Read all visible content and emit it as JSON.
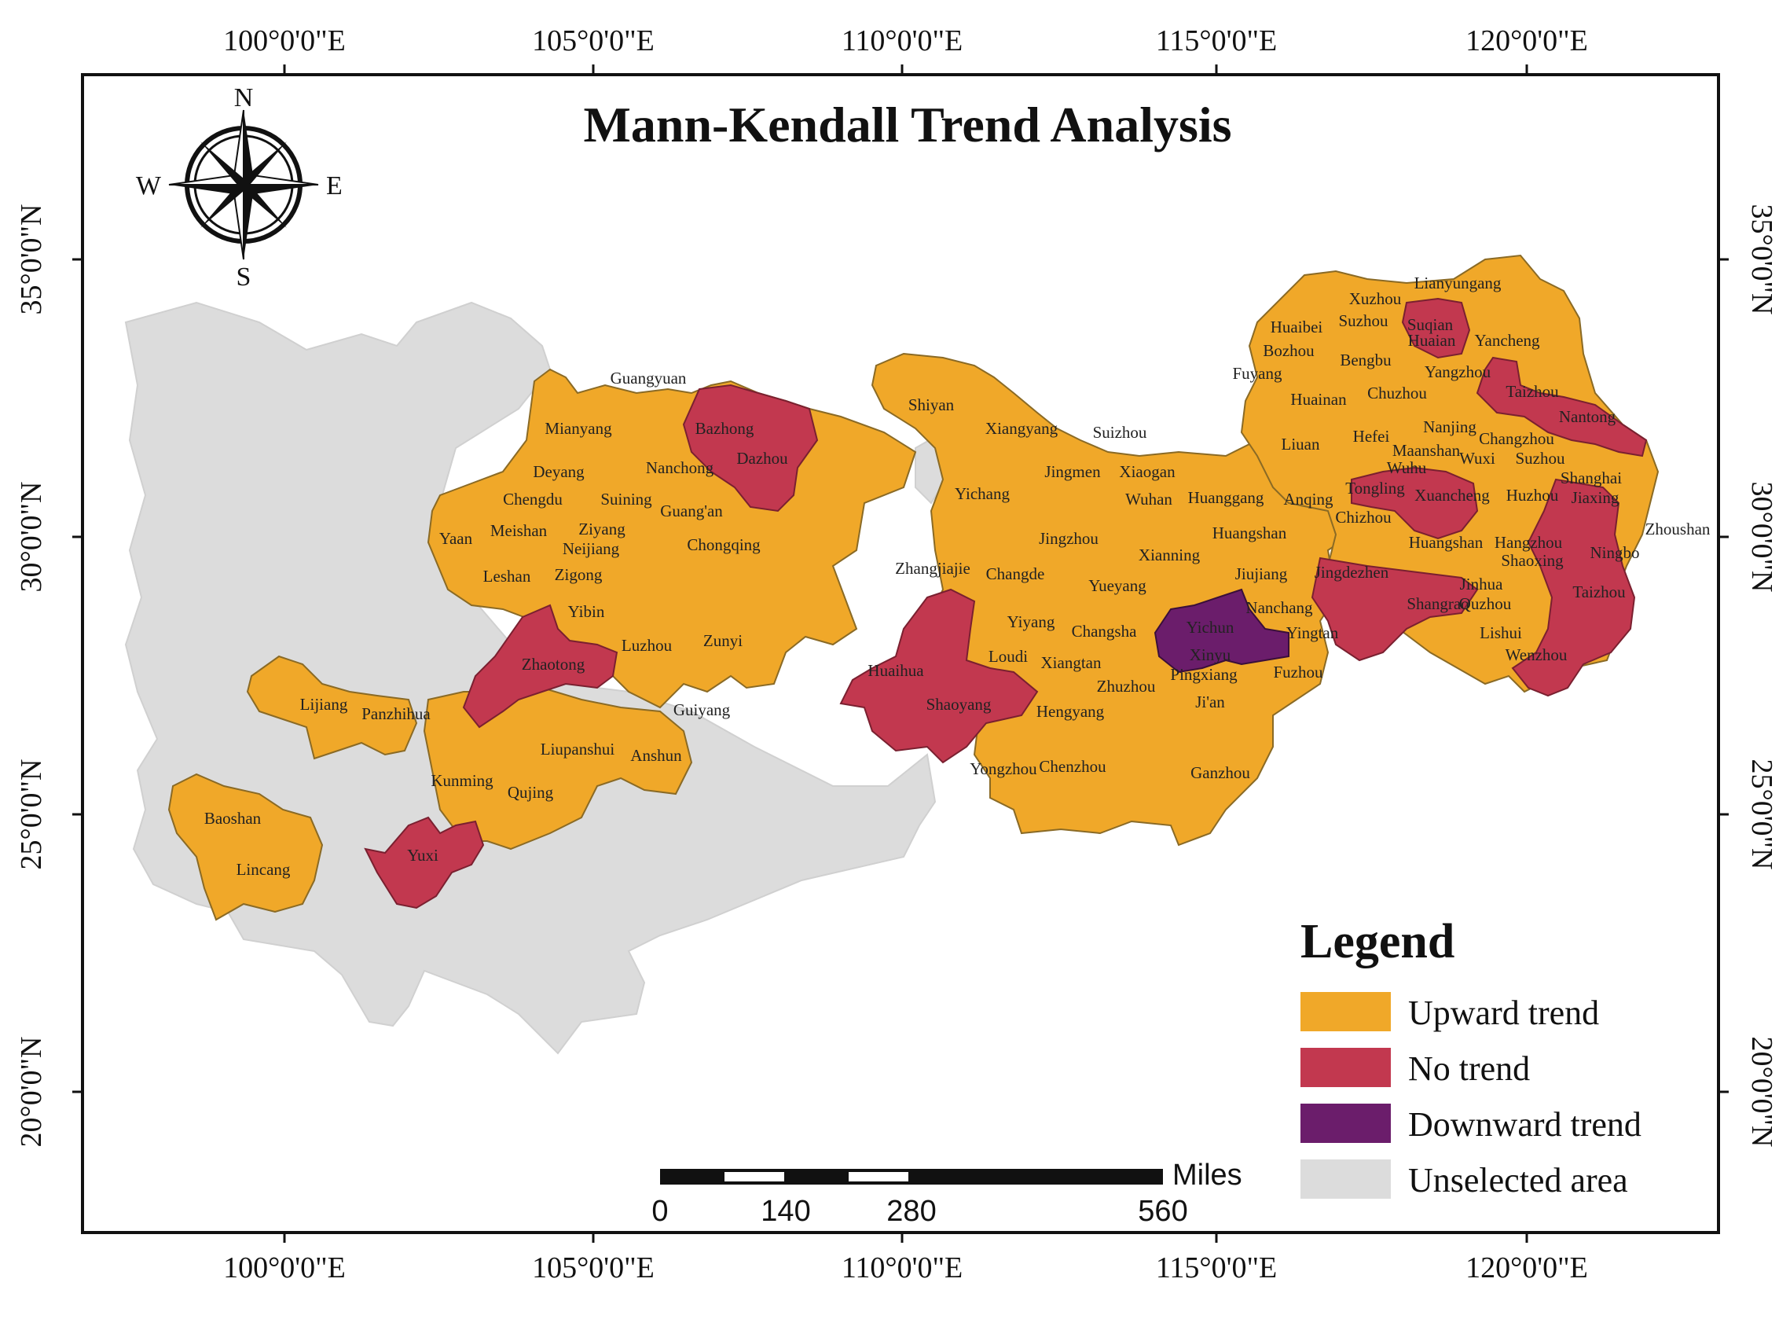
{
  "title": "Mann-Kendall Trend Analysis",
  "graticule": {
    "longitudes": [
      "100°0'0\"E",
      "105°0'0\"E",
      "110°0'0\"E",
      "115°0'0\"E",
      "120°0'0\"E"
    ],
    "latitudes": [
      "35°0'0\"N",
      "30°0'0\"N",
      "25°0'0\"N",
      "20°0'0\"N"
    ]
  },
  "compass": {
    "n": "N",
    "s": "S",
    "e": "E",
    "w": "W"
  },
  "legend": {
    "title": "Legend",
    "items": [
      {
        "label": "Upward trend",
        "color": "#f0a829"
      },
      {
        "label": "No trend",
        "color": "#c2384f"
      },
      {
        "label": "Downward trend",
        "color": "#6b1d6b"
      },
      {
        "label": "Unselected area",
        "color": "#dcdcdc"
      }
    ]
  },
  "scale_bar": {
    "unit": "Miles",
    "ticks": [
      "0",
      "140",
      "280",
      "560"
    ]
  },
  "cities": [
    {
      "name": "Lianyungang",
      "trend": "Upward trend"
    },
    {
      "name": "Xuzhou",
      "trend": "Upward trend"
    },
    {
      "name": "Suqian",
      "trend": "No trend"
    },
    {
      "name": "Huaibei",
      "trend": "Upward trend"
    },
    {
      "name": "Suzhou",
      "trend": "Upward trend"
    },
    {
      "name": "Huaian",
      "trend": "No trend"
    },
    {
      "name": "Yancheng",
      "trend": "Upward trend"
    },
    {
      "name": "Bozhou",
      "trend": "Upward trend"
    },
    {
      "name": "Bengbu",
      "trend": "Upward trend"
    },
    {
      "name": "Fuyang",
      "trend": "Upward trend"
    },
    {
      "name": "Yangzhou",
      "trend": "Upward trend"
    },
    {
      "name": "Huainan",
      "trend": "Upward trend"
    },
    {
      "name": "Chuzhou",
      "trend": "Upward trend"
    },
    {
      "name": "Taizhou",
      "trend": "No trend"
    },
    {
      "name": "Nantong",
      "trend": "No trend"
    },
    {
      "name": "Liuan",
      "trend": "Upward trend"
    },
    {
      "name": "Hefei",
      "trend": "Upward trend"
    },
    {
      "name": "Nanjing",
      "trend": "Upward trend"
    },
    {
      "name": "Changzhou",
      "trend": "Upward trend"
    },
    {
      "name": "Maanshan",
      "trend": "Upward trend"
    },
    {
      "name": "Wuxi",
      "trend": "Upward trend"
    },
    {
      "name": "Suzhou",
      "trend": "Upward trend"
    },
    {
      "name": "Wuhu",
      "trend": "Upward trend"
    },
    {
      "name": "Shanghai",
      "trend": "Upward trend"
    },
    {
      "name": "Tongling",
      "trend": "No trend"
    },
    {
      "name": "Xuancheng",
      "trend": "No trend"
    },
    {
      "name": "Huzhou",
      "trend": "Upward trend"
    },
    {
      "name": "Jiaxing",
      "trend": "No trend"
    },
    {
      "name": "Chizhou",
      "trend": "Upward trend"
    },
    {
      "name": "Huangshan",
      "trend": "Upward trend"
    },
    {
      "name": "Hangzhou",
      "trend": "Upward trend"
    },
    {
      "name": "Zhoushan",
      "trend": "Upward trend"
    },
    {
      "name": "Shaoxing",
      "trend": "No trend"
    },
    {
      "name": "Ningbo",
      "trend": "Upward trend"
    },
    {
      "name": "Jingdezhen",
      "trend": "No trend"
    },
    {
      "name": "Shangrao",
      "trend": "No trend"
    },
    {
      "name": "Quzhou",
      "trend": "No trend"
    },
    {
      "name": "Jinhua",
      "trend": "Upward trend"
    },
    {
      "name": "Taizhou",
      "trend": "No trend"
    },
    {
      "name": "Lishui",
      "trend": "Upward trend"
    },
    {
      "name": "Wenzhou",
      "trend": "No trend"
    },
    {
      "name": "Shiyan",
      "trend": "Upward trend"
    },
    {
      "name": "Xiangyang",
      "trend": "Upward trend"
    },
    {
      "name": "Suizhou",
      "trend": "Upward trend"
    },
    {
      "name": "Jingmen",
      "trend": "Upward trend"
    },
    {
      "name": "Xiaogan",
      "trend": "Upward trend"
    },
    {
      "name": "Yichang",
      "trend": "Upward trend"
    },
    {
      "name": "Wuhan",
      "trend": "Upward trend"
    },
    {
      "name": "Huanggang",
      "trend": "Upward trend"
    },
    {
      "name": "Anqing",
      "trend": "Upward trend"
    },
    {
      "name": "Jingzhou",
      "trend": "Upward trend"
    },
    {
      "name": "Huangshan",
      "trend": "Upward trend"
    },
    {
      "name": "Xianning",
      "trend": "Upward trend"
    },
    {
      "name": "Jiujiang",
      "trend": "Upward trend"
    },
    {
      "name": "Zhangjiajie",
      "trend": "Upward trend"
    },
    {
      "name": "Changde",
      "trend": "Upward trend"
    },
    {
      "name": "Yueyang",
      "trend": "Upward trend"
    },
    {
      "name": "Nanchang",
      "trend": "Downward trend"
    },
    {
      "name": "Yiyang",
      "trend": "Upward trend"
    },
    {
      "name": "Changsha",
      "trend": "Upward trend"
    },
    {
      "name": "Yichun",
      "trend": "Downward trend"
    },
    {
      "name": "Yingtan",
      "trend": "Upward trend"
    },
    {
      "name": "Xinyu",
      "trend": "Downward trend"
    },
    {
      "name": "Loudi",
      "trend": "Upward trend"
    },
    {
      "name": "Xiangtan",
      "trend": "Upward trend"
    },
    {
      "name": "Huaihua",
      "trend": "No trend"
    },
    {
      "name": "Pingxiang",
      "trend": "Upward trend"
    },
    {
      "name": "Fuzhou",
      "trend": "Upward trend"
    },
    {
      "name": "Zhuzhou",
      "trend": "Upward trend"
    },
    {
      "name": "Shaoyang",
      "trend": "No trend"
    },
    {
      "name": "Ji'an",
      "trend": "Upward trend"
    },
    {
      "name": "Hengyang",
      "trend": "Upward trend"
    },
    {
      "name": "Yongzhou",
      "trend": "Upward trend"
    },
    {
      "name": "Chenzhou",
      "trend": "Upward trend"
    },
    {
      "name": "Ganzhou",
      "trend": "Upward trend"
    },
    {
      "name": "Guangyuan",
      "trend": "Upward trend"
    },
    {
      "name": "Bazhong",
      "trend": "No trend"
    },
    {
      "name": "Mianyang",
      "trend": "Upward trend"
    },
    {
      "name": "Dazhou",
      "trend": "No trend"
    },
    {
      "name": "Deyang",
      "trend": "Upward trend"
    },
    {
      "name": "Nanchong",
      "trend": "Upward trend"
    },
    {
      "name": "Chengdu",
      "trend": "Upward trend"
    },
    {
      "name": "Suining",
      "trend": "Upward trend"
    },
    {
      "name": "Guang'an",
      "trend": "Upward trend"
    },
    {
      "name": "Yaan",
      "trend": "Upward trend"
    },
    {
      "name": "Meishan",
      "trend": "Upward trend"
    },
    {
      "name": "Ziyang",
      "trend": "Upward trend"
    },
    {
      "name": "Neijiang",
      "trend": "Upward trend"
    },
    {
      "name": "Chongqing",
      "trend": "Upward trend"
    },
    {
      "name": "Leshan",
      "trend": "Upward trend"
    },
    {
      "name": "Zigong",
      "trend": "Upward trend"
    },
    {
      "name": "Yibin",
      "trend": "Upward trend"
    },
    {
      "name": "Luzhou",
      "trend": "Upward trend"
    },
    {
      "name": "Zunyi",
      "trend": "Upward trend"
    },
    {
      "name": "Zhaotong",
      "trend": "No trend"
    },
    {
      "name": "Lijiang",
      "trend": "Upward trend"
    },
    {
      "name": "Panzhihua",
      "trend": "Upward trend"
    },
    {
      "name": "Guiyang",
      "trend": "Upward trend"
    },
    {
      "name": "Liupanshui",
      "trend": "Upward trend"
    },
    {
      "name": "Anshun",
      "trend": "Upward trend"
    },
    {
      "name": "Kunming",
      "trend": "Upward trend"
    },
    {
      "name": "Qujing",
      "trend": "Upward trend"
    },
    {
      "name": "Baoshan",
      "trend": "Upward trend"
    },
    {
      "name": "Yuxi",
      "trend": "No trend"
    },
    {
      "name": "Lincang",
      "trend": "Upward trend"
    }
  ]
}
